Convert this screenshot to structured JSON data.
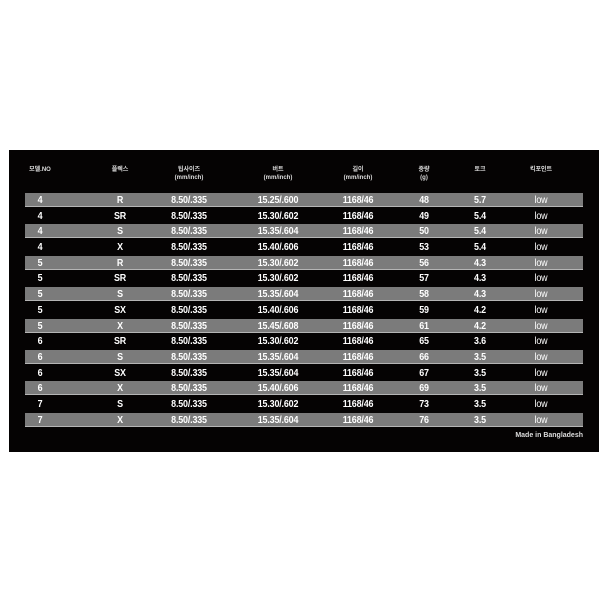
{
  "headers": [
    "모델.NO",
    "플렉스",
    "팁사이즈\n(mm/inch)",
    "버트\n(mm/inch)",
    "길이\n(mm/inch)",
    "중량\n(g)",
    "토크",
    "킥포인트"
  ],
  "rows": [
    [
      "4",
      "R",
      "8.50/.335",
      "15.25/.600",
      "1168/46",
      "48",
      "5.7",
      "low"
    ],
    [
      "4",
      "SR",
      "8.50/.335",
      "15.30/.602",
      "1168/46",
      "49",
      "5.4",
      "low"
    ],
    [
      "4",
      "S",
      "8.50/.335",
      "15.35/.604",
      "1168/46",
      "50",
      "5.4",
      "low"
    ],
    [
      "4",
      "X",
      "8.50/.335",
      "15.40/.606",
      "1168/46",
      "53",
      "5.4",
      "low"
    ],
    [
      "5",
      "R",
      "8.50/.335",
      "15.30/.602",
      "1168/46",
      "56",
      "4.3",
      "low"
    ],
    [
      "5",
      "SR",
      "8.50/.335",
      "15.30/.602",
      "1168/46",
      "57",
      "4.3",
      "low"
    ],
    [
      "5",
      "S",
      "8.50/.335",
      "15.35/.604",
      "1168/46",
      "58",
      "4.3",
      "low"
    ],
    [
      "5",
      "SX",
      "8.50/.335",
      "15.40/.606",
      "1168/46",
      "59",
      "4.2",
      "low"
    ],
    [
      "5",
      "X",
      "8.50/.335",
      "15.45/.608",
      "1168/46",
      "61",
      "4.2",
      "low"
    ],
    [
      "6",
      "SR",
      "8.50/.335",
      "15.30/.602",
      "1168/46",
      "65",
      "3.6",
      "low"
    ],
    [
      "6",
      "S",
      "8.50/.335",
      "15.35/.604",
      "1168/46",
      "66",
      "3.5",
      "low"
    ],
    [
      "6",
      "SX",
      "8.50/.335",
      "15.35/.604",
      "1168/46",
      "67",
      "3.5",
      "low"
    ],
    [
      "6",
      "X",
      "8.50/.335",
      "15.40/.606",
      "1168/46",
      "69",
      "3.5",
      "low"
    ],
    [
      "7",
      "S",
      "8.50/.335",
      "15.30/.602",
      "1168/46",
      "73",
      "3.5",
      "low"
    ],
    [
      "7",
      "X",
      "8.50/.335",
      "15.35/.604",
      "1168/46",
      "76",
      "3.5",
      "low"
    ]
  ],
  "footer": "Made in Bangladesh",
  "colors": {
    "background": "#050303",
    "stripe": "#7b7b7b"
  }
}
